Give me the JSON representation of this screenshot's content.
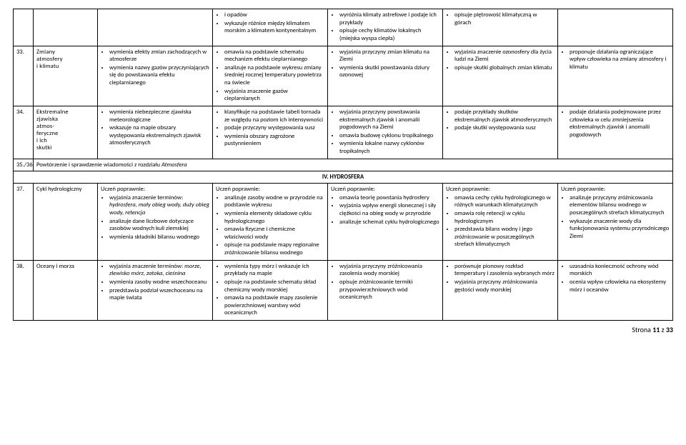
{
  "tableA": {
    "rows": [
      {
        "num": "",
        "topic": "",
        "c1": [],
        "c2": [
          "i opadów",
          "wykazuje różnice między klimatem morskim a klimatem kontynentalnym"
        ],
        "c3": [
          "wyróżnia klimaty astrefowe i podaje ich przykłady",
          "opisuje cechy klimatów lokalnych (miejska wyspa ciepła)"
        ],
        "c4": [
          "opisuje piętrowość klimatyczną w górach"
        ],
        "c5": []
      },
      {
        "num": "33.",
        "topic": "Zmiany atmosfery i klimatu",
        "c1": [
          "wymienia efekty zmian zachodzących w atmosferze",
          "wymienia nazwy gazów przyczyniających się do powstawania efektu cieplarnianego"
        ],
        "c2": [
          "omawia na podstawie schematu mechanizm efektu cieplarnianego",
          "analizuje na podstawie wykresu zmiany średniej rocznej temperatury powietrza na świecie",
          "wyjaśnia znaczenie gazów cieplarnianych"
        ],
        "c3": [
          "wyjaśnia przyczyny zmian klimatu na Ziemi",
          "wymienia skutki powstawania dziury ozonowej"
        ],
        "c4": [
          "wyjaśnia znaczenie ozonosfery dla życia ludzi na Ziemi",
          "opisuje skutki globalnych zmian klimatu"
        ],
        "c5": [
          "proponuje działania ograniczające wpływ człowieka na zmiany atmosfery i klimatu"
        ]
      },
      {
        "num": "34.",
        "topic": "Ekstremalne zjawiska atmosferyczne i ich skutki",
        "c1": [
          "wymienia niebezpieczne zjawiska meteorologiczne",
          "wskazuje na mapie obszary występowania ekstremalnych zjawisk atmosferycznych"
        ],
        "c2": [
          "klasyfikuje na podstawie tabeli tornada ze względu na poziom ich intensywności",
          "podaje przyczyny występowania susz",
          "wymienia obszary zagrożone pustynnieniem"
        ],
        "c3": [
          "wyjaśnia przyczyny powstawania ekstremalnych zjawisk i anomalii pogodowych na Ziemi",
          "omawia budowę cyklonu tropikalnego",
          "wymienia lokalne nazwy cyklonów tropikalnych"
        ],
        "c4": [
          "podaje przykłady skutków ekstremalnych zjawisk atmosferycznych",
          "podaje skutki występowania susz"
        ],
        "c5": [
          "podaje działania podejmowane przez człowieka w celu zmniejszenia ekstremalnych zjawisk i anomalii pogodowych"
        ]
      },
      {
        "num": "35./36.",
        "summary": "Powtórzenie i sprawdzenie wiadomości z rozdziału Atmosfera"
      }
    ]
  },
  "sectionHeader": "IV.   HYDROSFERA",
  "introLabel": "Uczeń poprawnie:",
  "tableB": {
    "rows": [
      {
        "num": "37.",
        "topic": "Cykl hydrologiczny",
        "c1": [
          "wyjaśnia znaczenie terminów: hydrosfera, mały obieg wody, duży obieg wody, retencja",
          "analizuje dane liczbowe dotyczące zasobów wodnych kuli ziemskiej",
          "wymienia składniki bilansu wodnego"
        ],
        "c2": [
          "analizuje zasoby wodne w przyrodzie na podstawie wykresu",
          "wymienia elementy składowe cyklu hydrologicznego",
          "omawia fizyczne i chemiczne właściwości wody",
          "opisuje na podstawie mapy regionalne zróżnicowanie bilansu wodnego"
        ],
        "c3": [
          "omawia teorię powstania hydrosfery",
          "wyjaśnia wpływ energii słonecznej i siły ciężkości na obieg wody w przyrodzie",
          "analizuje schemat cyklu hydrologicznego"
        ],
        "c4": [
          "omawia cechy cyklu hydrologicznego w różnych warunkach klimatycznych",
          "omawia rolę retencji w cyklu hydrologicznym",
          "przedstawia bilans wodny i jego zróżnicowanie w poszczególnych strefach klimatycznych"
        ],
        "c5": [
          "analizuje przyczyny zróżnicowania elementów bilansu wodnego w poszczególnych strefach klimatycznych",
          "wykazuje znaczenie wody dla funkcjonowania systemu przyrodniczego Ziemi"
        ]
      },
      {
        "num": "38.",
        "topic": "Oceany i morza",
        "c1": [
          "wyjaśnia znaczenie terminów: morze, zlewisko mórz, zatoka, cieśnina",
          "wymienia zasoby wodne wszechoceanu",
          "przedstawia podział wszechoceanu na mapie świata"
        ],
        "c2": [
          "wymienia typy mórz i wskazuje ich przykłady na mapie",
          "opisuje na podstawie schematu skład chemiczny wody morskiej",
          "omawia na podstawie mapy zasolenie powierzchniowej warstwy wód oceanicznych"
        ],
        "c3": [
          "wyjaśnia przyczyny zróżnicowania zasolenia wody morskiej",
          "opisuje zróżnicowanie termiki przypowierzchniowych wód oceanicznych"
        ],
        "c4": [
          "porównuje pionowy rozkład temperatury i zasolenia wybranych mórz",
          "wyjaśnia przyczyny zróżnicowania gęstości wody morskiej"
        ],
        "c5": [
          "uzasadnia konieczność ochrony wód morskich",
          "ocenia wpływ człowieka na ekosystemy mórz i oceanów"
        ]
      }
    ]
  },
  "footer": {
    "label": "Strona ",
    "page": "11",
    "of": " z ",
    "total": "33"
  }
}
